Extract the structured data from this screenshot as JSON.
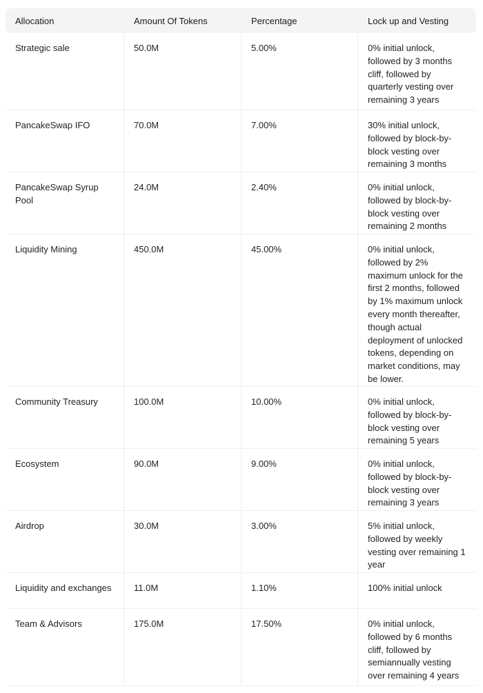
{
  "headers": [
    "Allocation",
    "Amount Of Tokens",
    "Percentage",
    "Lock up and Vesting"
  ],
  "rows": [
    {
      "allocation": "Strategic sale",
      "amount": "50.0M",
      "percentage": "5.00%",
      "vesting": "0% initial unlock, followed by 3 months cliff, followed by quarterly vesting over remaining 3 years"
    },
    {
      "allocation": "PancakeSwap IFO",
      "amount": "70.0M",
      "percentage": "7.00%",
      "vesting": "30% initial unlock, followed by block-by-block vesting over remaining 3 months"
    },
    {
      "allocation": "PancakeSwap Syrup Pool",
      "amount": "24.0M",
      "percentage": "2.40%",
      "vesting": "0% initial unlock, followed by block-by-block vesting over remaining 2 months"
    },
    {
      "allocation": "Liquidity Mining",
      "amount": "450.0M",
      "percentage": "45.00%",
      "vesting": "0% initial unlock, followed by 2% maximum unlock for the first 2 months, followed by 1% maximum unlock every month thereafter, though actual deployment of unlocked tokens, depending on market conditions, may be lower."
    },
    {
      "allocation": "Community Treasury",
      "amount": "100.0M",
      "percentage": "10.00%",
      "vesting": "0% initial unlock, followed by block-by-block vesting over remaining 5 years"
    },
    {
      "allocation": "Ecosystem",
      "amount": "90.0M",
      "percentage": "9.00%",
      "vesting": "0% initial unlock, followed by block-by-block vesting over remaining 3 years"
    },
    {
      "allocation": "Airdrop",
      "amount": "30.0M",
      "percentage": "3.00%",
      "vesting": "5% initial unlock, followed by weekly vesting over remaining 1 year"
    },
    {
      "allocation": "Liquidity and exchanges",
      "amount": "11.0M",
      "percentage": "1.10%",
      "vesting": "100% initial unlock"
    },
    {
      "allocation": "Team & Advisors",
      "amount": "175.0M",
      "percentage": "17.50%",
      "vesting": "0% initial unlock, followed by 6 months cliff, followed by semiannually vesting over remaining 4 years"
    }
  ]
}
